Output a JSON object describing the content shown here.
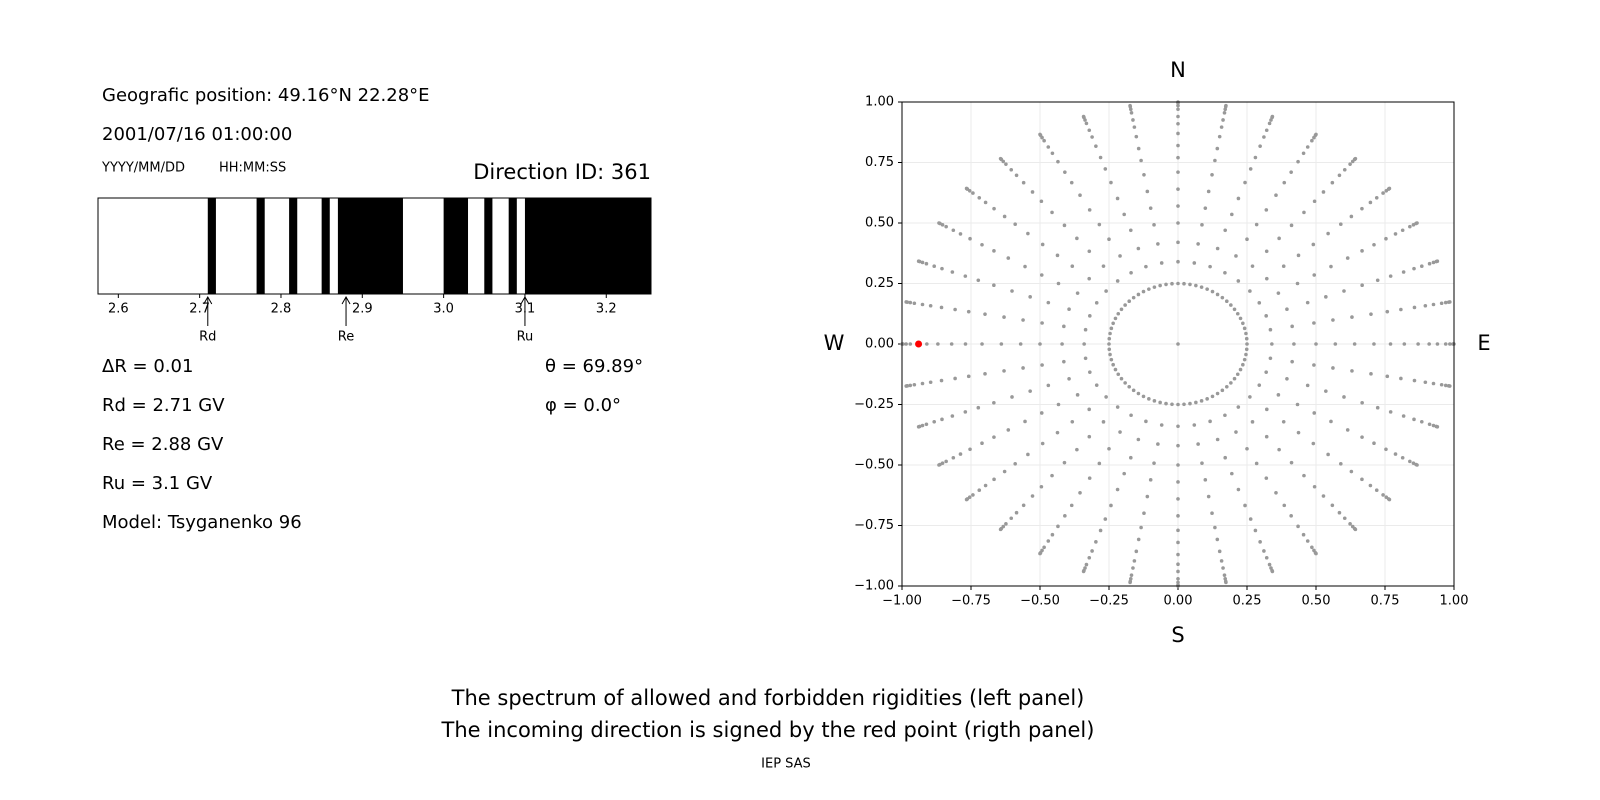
{
  "header": {
    "position": "Geografic position: 49.16°N 22.28°E",
    "datetime": "2001/07/16 01:00:00",
    "date_format": "YYYY/MM/DD",
    "time_format": "HH:MM:SS"
  },
  "chart_data": [
    {
      "type": "spectrum",
      "title": "Direction ID: 361",
      "xlim": [
        2.575,
        3.255
      ],
      "xticks": [
        2.6,
        2.7,
        2.8,
        2.9,
        {
          "value": 3,
          "label": "3.0"
        },
        3.1,
        3.2
      ],
      "color": "#000000",
      "forbidden": [
        [
          2.71,
          2.72
        ],
        [
          2.77,
          2.78
        ],
        [
          2.81,
          2.82
        ],
        [
          2.85,
          2.86
        ],
        [
          2.87,
          2.95
        ],
        [
          3.0,
          3.03
        ],
        [
          3.05,
          3.06
        ],
        [
          3.08,
          3.09
        ],
        [
          3.1,
          3.255
        ]
      ],
      "markers": [
        {
          "label": "Rd",
          "value": 2.71
        },
        {
          "label": "Re",
          "value": 2.88
        },
        {
          "label": "Ru",
          "value": 3.1
        }
      ]
    },
    {
      "type": "polar-scatter",
      "compass": [
        "N",
        "E",
        "S",
        "W"
      ],
      "xlim": [
        -1,
        1
      ],
      "ylim": [
        -1,
        1
      ],
      "grid": true,
      "xticks": [
        {
          "value": -1,
          "label": "−1.00"
        },
        {
          "value": -0.75,
          "label": "−0.75"
        },
        {
          "value": -0.5,
          "label": "−0.50"
        },
        {
          "value": -0.25,
          "label": "−0.25"
        },
        {
          "value": 0,
          "label": "0.00"
        },
        {
          "value": 0.25,
          "label": "0.25"
        },
        {
          "value": 0.5,
          "label": "0.50"
        },
        {
          "value": 0.75,
          "label": "0.75"
        },
        {
          "value": 1,
          "label": "1.00"
        }
      ],
      "yticks": [
        {
          "value": -1,
          "label": "−1.00"
        },
        {
          "value": -0.75,
          "label": "−0.75"
        },
        {
          "value": -0.5,
          "label": "−0.50"
        },
        {
          "value": -0.25,
          "label": "−0.25"
        },
        {
          "value": 0,
          "label": "0.00"
        },
        {
          "value": 0.25,
          "label": "0.25"
        },
        {
          "value": 0.5,
          "label": "0.50"
        },
        {
          "value": 0.75,
          "label": "0.75"
        },
        {
          "value": 1,
          "label": "1.00"
        }
      ],
      "color": "#999999",
      "rings": [
        {
          "r": 0,
          "count": 1
        },
        {
          "r": 0.25,
          "count": 72
        },
        {
          "r": 0.34,
          "count": 36
        },
        {
          "r": 0.42,
          "count": 36
        },
        {
          "r": 0.5,
          "count": 36
        },
        {
          "r": 0.57,
          "count": 36
        },
        {
          "r": 0.64,
          "count": 36
        },
        {
          "r": 0.71,
          "count": 36
        },
        {
          "r": 0.77,
          "count": 36
        },
        {
          "r": 0.82,
          "count": 36
        },
        {
          "r": 0.87,
          "count": 36
        },
        {
          "r": 0.91,
          "count": 36
        },
        {
          "r": 0.94,
          "count": 36
        },
        {
          "r": 0.97,
          "count": 36
        },
        {
          "r": 0.985,
          "count": 36
        },
        {
          "r": 0.996,
          "count": 36
        },
        {
          "r": 1.0,
          "count": 36
        }
      ],
      "highlight": {
        "x": -0.94,
        "y": 0,
        "color": "#ff0000"
      }
    }
  ],
  "parameters": {
    "delta_r": "ΔR = 0.01",
    "rd": "Rd = 2.71 GV",
    "re": "Re = 2.88 GV",
    "ru": "Ru = 3.1 GV",
    "model": "Model: Tsyganenko 96",
    "theta": "θ = 69.89°",
    "phi": "φ = 0.0°"
  },
  "caption": [
    "The spectrum of allowed and forbidden rigidities (left panel)",
    "The incoming direction is signed by the red point (rigth panel)"
  ],
  "footer": "IEP SAS"
}
